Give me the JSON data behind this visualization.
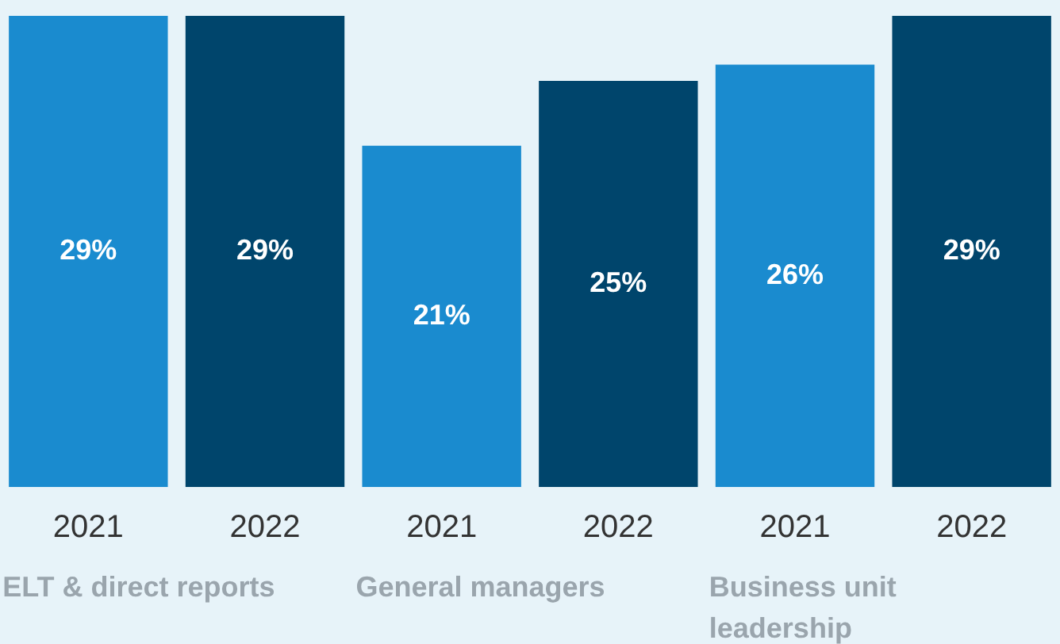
{
  "chart_data": {
    "type": "bar",
    "categories": [
      "2021",
      "2022",
      "2021",
      "2022",
      "2021",
      "2022"
    ],
    "values": [
      29,
      29,
      21,
      25,
      26,
      29
    ],
    "colors": [
      "#1a8bcf",
      "#00456c",
      "#1a8bcf",
      "#00456c",
      "#1a8bcf",
      "#00456c"
    ],
    "value_labels": [
      "29%",
      "29%",
      "21%",
      "25%",
      "26%",
      "29%"
    ],
    "annotations": [
      "ELT & direct reports",
      "General managers",
      "Business unit leadership"
    ],
    "grid": false,
    "legend": false
  }
}
